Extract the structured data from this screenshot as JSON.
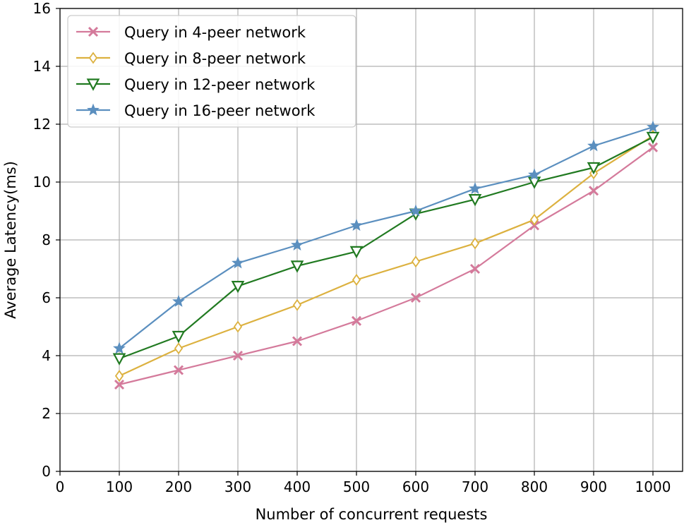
{
  "chart_data": {
    "type": "line",
    "title": "",
    "xlabel": "Number of concurrent requests",
    "ylabel": "Average Latency(ms)",
    "xlim": [
      0,
      1050
    ],
    "ylim": [
      0,
      16
    ],
    "xticks": [
      0,
      100,
      200,
      300,
      400,
      500,
      600,
      700,
      800,
      900,
      1000
    ],
    "yticks": [
      0,
      2,
      4,
      6,
      8,
      10,
      12,
      14,
      16
    ],
    "grid": true,
    "legend_position": "upper-left",
    "x": [
      100,
      200,
      300,
      400,
      500,
      600,
      700,
      800,
      900,
      1000
    ],
    "series": [
      {
        "name": "Query in 4-peer network",
        "color": "#d47a9b",
        "marker": "x",
        "values": [
          3.0,
          3.5,
          4.0,
          4.5,
          5.2,
          6.0,
          7.0,
          8.5,
          9.7,
          11.2
        ]
      },
      {
        "name": "Query in 8-peer network",
        "color": "#dcb13f",
        "marker": "diamond",
        "values": [
          3.3,
          4.25,
          5.0,
          5.75,
          6.62,
          7.25,
          7.88,
          8.7,
          10.3,
          11.6
        ]
      },
      {
        "name": "Query in 12-peer network",
        "color": "#217a21",
        "marker": "triangle-down",
        "values": [
          3.9,
          4.67,
          6.4,
          7.1,
          7.6,
          8.9,
          9.4,
          10.0,
          10.5,
          11.55
        ]
      },
      {
        "name": "Query in 16-peer network",
        "color": "#5b8fbf",
        "marker": "star",
        "values": [
          4.25,
          5.87,
          7.2,
          7.82,
          8.5,
          9.0,
          9.77,
          10.25,
          11.25,
          11.9
        ]
      }
    ]
  }
}
